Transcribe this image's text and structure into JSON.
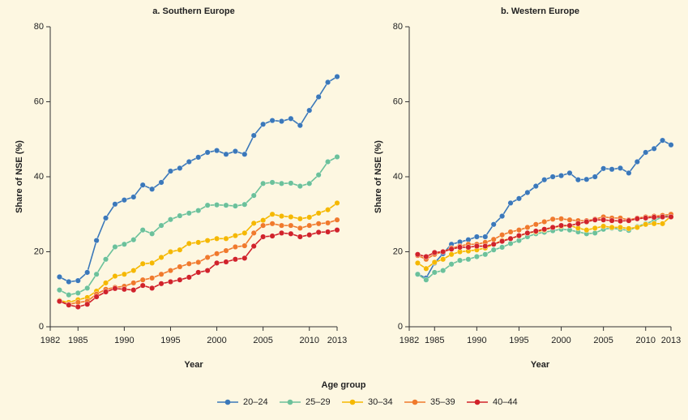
{
  "chart_data": [
    {
      "type": "line",
      "title": "a. Southern Europe",
      "xlabel": "Year",
      "ylabel": "Share of NSE (%)",
      "legend_title": "Age group",
      "x": [
        1983,
        1984,
        1985,
        1986,
        1987,
        1988,
        1989,
        1990,
        1991,
        1992,
        1993,
        1994,
        1995,
        1996,
        1997,
        1998,
        1999,
        2000,
        2001,
        2002,
        2003,
        2004,
        2005,
        2006,
        2007,
        2008,
        2009,
        2010,
        2011,
        2012,
        2013
      ],
      "xlim": [
        1982,
        2013
      ],
      "xticks": [
        1982,
        1985,
        1990,
        1995,
        2000,
        2005,
        2010,
        2013
      ],
      "ylim": [
        0,
        80
      ],
      "yticks": [
        0,
        20,
        40,
        60,
        80
      ],
      "grid": false,
      "series": [
        {
          "name": "20–24",
          "color": "#3b78b9",
          "values": [
            13.3,
            12,
            12.3,
            14.5,
            23,
            29,
            32.7,
            33.8,
            34.6,
            37.8,
            36.7,
            38.5,
            41.5,
            42.3,
            44,
            45.2,
            46.5,
            47,
            46,
            46.8,
            46,
            51,
            54,
            55,
            54.8,
            55.5,
            53.7,
            57.7,
            61.3,
            65.2,
            66.7
          ]
        },
        {
          "name": "25–29",
          "color": "#6cc19a",
          "values": [
            9.8,
            8.5,
            9,
            10.3,
            14,
            18,
            21.3,
            22,
            23.2,
            25.8,
            24.8,
            27,
            28.6,
            29.6,
            30.3,
            31,
            32.4,
            32.5,
            32.4,
            32.2,
            32.6,
            35,
            38.2,
            38.5,
            38.2,
            38.3,
            37.5,
            38.2,
            40.5,
            44,
            45.3
          ]
        },
        {
          "name": "30–34",
          "color": "#f5b800",
          "values": [
            7,
            6.5,
            7.2,
            7.8,
            9.5,
            11.7,
            13.5,
            14,
            15,
            16.8,
            17,
            18.5,
            20,
            20.5,
            22.2,
            22.5,
            23,
            23.5,
            23.5,
            24.3,
            25,
            27.6,
            28.4,
            30,
            29.5,
            29.3,
            28.8,
            29.2,
            30.3,
            31.2,
            33
          ]
        },
        {
          "name": "35–39",
          "color": "#f07a2c",
          "values": [
            6.8,
            6,
            6.5,
            6.8,
            8.7,
            10,
            10.5,
            10.8,
            11.7,
            12.5,
            13,
            14,
            15,
            16,
            16.8,
            17.2,
            18.5,
            19.5,
            20.3,
            21.3,
            21.6,
            25,
            27,
            27.5,
            27,
            27,
            26.3,
            27,
            27.5,
            27.7,
            28.5
          ]
        },
        {
          "name": "40–44",
          "color": "#d1232a",
          "values": [
            6.8,
            5.8,
            5.3,
            6,
            8,
            9.3,
            10.2,
            10,
            9.8,
            11,
            10.3,
            11.5,
            12,
            12.5,
            13.2,
            14.5,
            15,
            17,
            17.3,
            18,
            18.3,
            21.5,
            24,
            24.2,
            25,
            24.8,
            24,
            24.5,
            25.2,
            25.3,
            25.8
          ]
        }
      ]
    },
    {
      "type": "line",
      "title": "b. Western Europe",
      "xlabel": "Year",
      "ylabel": "Share of NSE (%)",
      "x": [
        1983,
        1984,
        1985,
        1986,
        1987,
        1988,
        1989,
        1990,
        1991,
        1992,
        1993,
        1994,
        1995,
        1996,
        1997,
        1998,
        1999,
        2000,
        2001,
        2002,
        2003,
        2004,
        2005,
        2006,
        2007,
        2008,
        2009,
        2010,
        2011,
        2012,
        2013
      ],
      "xlim": [
        1982,
        2013
      ],
      "xticks": [
        1982,
        1985,
        1990,
        1995,
        2000,
        2005,
        2010,
        2013
      ],
      "ylim": [
        0,
        80
      ],
      "yticks": [
        0,
        20,
        40,
        60,
        80
      ],
      "grid": false,
      "series": [
        {
          "name": "20–24",
          "color": "#3b78b9",
          "values": [
            14,
            13,
            17,
            19.5,
            22,
            22.6,
            23.2,
            24,
            24,
            27.3,
            29.5,
            33,
            34.2,
            35.8,
            37.5,
            39.2,
            40,
            40.3,
            41,
            39.2,
            39.3,
            40,
            42.2,
            42,
            42.3,
            41,
            44,
            46.5,
            47.5,
            49.7,
            48.5
          ]
        },
        {
          "name": "25–29",
          "color": "#6cc19a",
          "values": [
            14,
            12.5,
            14.5,
            15,
            16.7,
            17.7,
            18,
            18.7,
            19.3,
            20.5,
            21.2,
            22.2,
            23,
            24,
            24.8,
            25.2,
            25.6,
            26,
            25.8,
            25.3,
            24.8,
            25,
            26,
            26.3,
            26,
            25.7,
            26.7,
            27.5,
            28.3,
            29.3,
            29.7
          ]
        },
        {
          "name": "30–34",
          "color": "#f5b800",
          "values": [
            17,
            15.5,
            17.2,
            18,
            19.3,
            20,
            20.2,
            20.5,
            21,
            22,
            23,
            23.5,
            24.2,
            25,
            25.3,
            25.8,
            26.5,
            26.8,
            27,
            26.3,
            25.8,
            26.3,
            26.8,
            26.5,
            26.5,
            26.2,
            26.5,
            27.3,
            27.5,
            27.5,
            29.5
          ]
        },
        {
          "name": "35–39",
          "color": "#f07a2c",
          "values": [
            19,
            18,
            19.3,
            20,
            21,
            21.5,
            22,
            22,
            22.5,
            23.3,
            24.5,
            25.3,
            25.8,
            26.5,
            27.3,
            28,
            28.7,
            28.8,
            28.5,
            28.3,
            28.3,
            28.7,
            29.3,
            29,
            29,
            28.5,
            29,
            29.3,
            29.5,
            29.7,
            30
          ]
        },
        {
          "name": "40–44",
          "color": "#d1232a",
          "values": [
            19.3,
            18.7,
            19.8,
            20,
            20.7,
            21.2,
            21.2,
            21.5,
            21.5,
            22,
            22.8,
            23.5,
            24.3,
            25,
            25.5,
            26,
            26.5,
            27,
            27,
            27.5,
            28,
            28.5,
            28.5,
            28.3,
            28.2,
            28.3,
            28.8,
            29,
            29.2,
            29.3,
            29.3
          ]
        }
      ]
    }
  ]
}
